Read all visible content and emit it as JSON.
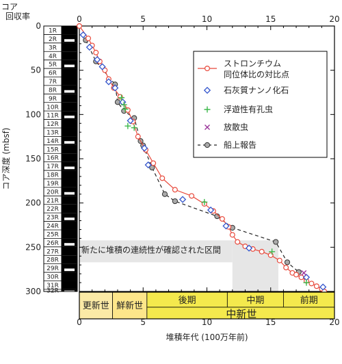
{
  "chart_data": {
    "type": "scatter",
    "xlabel": "堆積年代 (100万年前)",
    "ylabel": "コア深度 (mbsf)",
    "xlim": [
      0,
      20
    ],
    "ylim": [
      0,
      300
    ],
    "xticks": [
      0,
      5,
      10,
      15,
      20
    ],
    "yticks": [
      0,
      50,
      100,
      150,
      200,
      250,
      300
    ],
    "core_column_title": [
      "コア",
      "回収率"
    ],
    "cores": [
      {
        "label": "1R",
        "top": 0
      },
      {
        "label": "2R",
        "top": 9.6
      },
      {
        "label": "3R",
        "top": 19.2
      },
      {
        "label": "4R",
        "top": 28.8
      },
      {
        "label": "5R",
        "top": 38.4
      },
      {
        "label": "6R",
        "top": 48
      },
      {
        "label": "7R",
        "top": 57.6
      },
      {
        "label": "8R",
        "top": 67.2
      },
      {
        "label": "9R",
        "top": 76.8
      },
      {
        "label": "10R",
        "top": 86.4
      },
      {
        "label": "11R",
        "top": 96
      },
      {
        "label": "12R",
        "top": 105.6
      },
      {
        "label": "13R",
        "top": 115.2
      },
      {
        "label": "14R",
        "top": 124.8
      },
      {
        "label": "15R",
        "top": 134.4
      },
      {
        "label": "16R",
        "top": 144
      },
      {
        "label": "17R",
        "top": 153.6
      },
      {
        "label": "18R",
        "top": 163.2
      },
      {
        "label": "19R",
        "top": 172.8
      },
      {
        "label": "20R",
        "top": 182.4
      },
      {
        "label": "21R",
        "top": 192
      },
      {
        "label": "22R",
        "top": 201.6
      },
      {
        "label": "23R",
        "top": 211.2
      },
      {
        "label": "24R",
        "top": 220.8
      },
      {
        "label": "25R",
        "top": 230.4
      },
      {
        "label": "26R",
        "top": 240
      },
      {
        "label": "27R",
        "top": 249.6
      },
      {
        "label": "28R",
        "top": 259.2
      },
      {
        "label": "29R",
        "top": 268.8
      },
      {
        "label": "30R",
        "top": 278.4
      },
      {
        "label": "31R",
        "top": 288
      },
      {
        "label": "32R",
        "top": 297.6
      }
    ],
    "series": [
      {
        "name": "ストロンチウム\n同位体比の対比点",
        "marker": "circle-line",
        "color": "#e8483a",
        "x": [
          0,
          0.7,
          1.0,
          1.3,
          1.6,
          2.0,
          2.3,
          2.7,
          3.2,
          3.8,
          4.2,
          4.6,
          5.2,
          5.8,
          6.5,
          7.5,
          8.8,
          9.8,
          10.5,
          11.2,
          11.7,
          12.0,
          12.4,
          13.0,
          13.6,
          14.3,
          15.0,
          15.7,
          16.2,
          16.7,
          17.0,
          17.4,
          17.8,
          18.2,
          18.6,
          19.0,
          19.2
        ],
        "y": [
          0,
          14,
          22,
          30,
          40,
          50,
          60,
          70,
          80,
          95,
          108,
          125,
          140,
          155,
          172,
          185,
          192,
          201,
          209,
          218,
          227,
          236,
          244,
          249,
          252,
          255,
          259,
          265,
          273,
          279,
          281,
          284,
          288,
          291,
          294,
          297,
          300
        ]
      },
      {
        "name": "石灰質ナンノ化石",
        "marker": "diamond",
        "color": "#3355cc",
        "x": [
          0.3,
          0.8,
          1.4,
          1.8,
          2.3,
          2.8,
          3.4,
          4.0,
          5.1,
          5.4,
          8.1,
          10.3,
          11.5,
          13.3,
          17.8,
          19.1
        ],
        "y": [
          10,
          24,
          38,
          46,
          63,
          70,
          86,
          107,
          138,
          157,
          196,
          208,
          226,
          251,
          284,
          295
        ]
      },
      {
        "name": "浮遊性有孔虫",
        "marker": "plus",
        "color": "#3cb84a",
        "x": [
          3.3,
          3.5,
          3.6,
          3.8,
          4.3,
          9.8,
          15.1,
          17.8
        ],
        "y": [
          81,
          89,
          94,
          113,
          115,
          199,
          255,
          290
        ]
      },
      {
        "name": "放散虫",
        "marker": "x",
        "color": "#993399",
        "x": [
          17.6
        ],
        "y": [
          279
        ]
      },
      {
        "name": "船上報告",
        "marker": "circle-dash",
        "color": "#888888",
        "x": [
          0.5,
          1.3,
          2.8,
          3.0,
          3.5,
          4.3,
          4.8,
          5.0,
          5.7,
          6.7,
          7.5,
          10.8,
          12.0,
          15.4,
          16.3,
          17.2
        ],
        "y": [
          16,
          40,
          66,
          86,
          96,
          104,
          130,
          135,
          160,
          190,
          198,
          215,
          228,
          244,
          267,
          278
        ]
      }
    ],
    "legend_placement": "top-right",
    "highlight": {
      "label": "新たに堆積の連続性が確認された区間",
      "x": [
        12.0,
        15.6
      ],
      "y": [
        250,
        300
      ]
    },
    "epochs": [
      {
        "label": "更新世",
        "x": [
          0,
          2.6
        ],
        "color": "#fbeaa6"
      },
      {
        "label": "鮮新世",
        "x": [
          2.6,
          5.3
        ],
        "color": "#fde68a"
      },
      {
        "label": "後期",
        "x": [
          5.3,
          11.6
        ],
        "color": "#f4e94d"
      },
      {
        "label": "中期",
        "x": [
          11.6,
          16.0
        ],
        "color": "#f4e94d"
      },
      {
        "label": "前期",
        "x": [
          16.0,
          20
        ],
        "color": "#f4e94d"
      }
    ],
    "miocene_label": "中新世"
  }
}
